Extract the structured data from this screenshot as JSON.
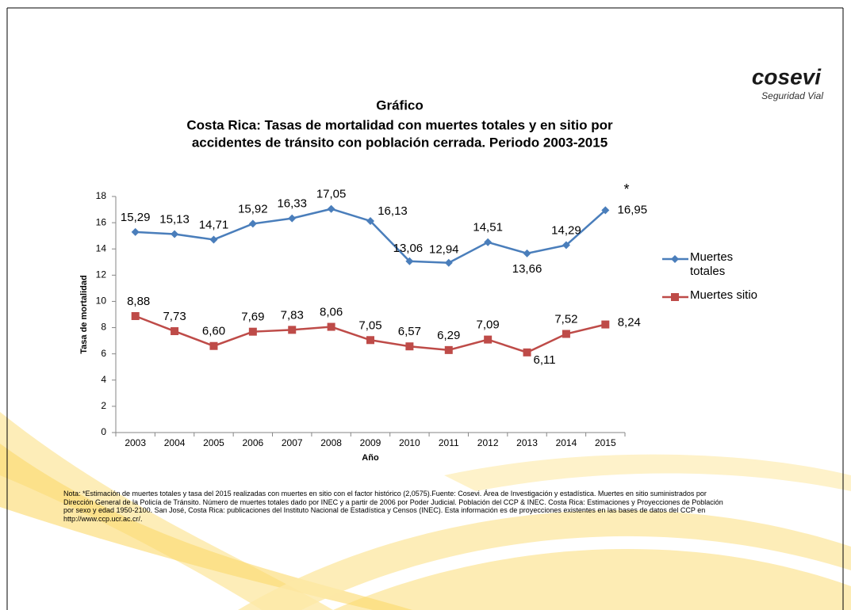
{
  "logo": {
    "name": "cosevi",
    "tagline": "Seguridad Vial"
  },
  "chart_data": {
    "type": "line",
    "title": "Gráfico",
    "subtitle": [
      "Costa Rica: Tasas de mortalidad con muertes totales  y  en sitio por",
      "accidentes de tránsito con población cerrada. Periodo 2003-2015"
    ],
    "x_label": "Año",
    "y_label": "Tasa de mortalidad",
    "annotation": "*",
    "categories": [
      "2003",
      "2004",
      "2005",
      "2006",
      "2007",
      "2008",
      "2009",
      "2010",
      "2011",
      "2012",
      "2013",
      "2014",
      "2015"
    ],
    "series": [
      {
        "name": "Muertes totales",
        "color": "#4a7ebb",
        "marker": "diamond",
        "values": [
          15.29,
          15.13,
          14.71,
          15.92,
          16.33,
          17.05,
          16.13,
          13.06,
          12.94,
          14.51,
          13.66,
          14.29,
          16.95
        ],
        "value_labels": [
          "15,29",
          "15,13",
          "14,71",
          "15,92",
          "16,33",
          "17,05",
          "16,13",
          "13,06",
          "12,94",
          "14,51",
          "13,66",
          "14,29",
          "16,95"
        ]
      },
      {
        "name": "Muertes sitio",
        "color": "#be4b48",
        "marker": "square",
        "values": [
          8.88,
          7.73,
          6.6,
          7.69,
          7.83,
          8.06,
          7.05,
          6.57,
          6.29,
          7.09,
          6.11,
          7.52,
          8.24
        ],
        "value_labels": [
          "8,88",
          "7,73",
          "6,60",
          "7,69",
          "7,83",
          "8,06",
          "7,05",
          "6,57",
          "6,29",
          "7,09",
          "6,11",
          "7,52",
          "8,24"
        ]
      }
    ],
    "ylim": [
      0,
      18
    ],
    "yticks": [
      0,
      2,
      4,
      6,
      8,
      10,
      12,
      14,
      16,
      18
    ],
    "grid": false,
    "legend": "right"
  },
  "note": "Nota: *Estimación de muertes totales y tasa del 2015 realizadas con muertes en sitio con el factor histórico (2,0575).Fuente: Cosevi. Área de Investigación y estadística. Muertes en sitio suministrados por Dirección General de la Policía de Tránsito.  Número de muertes totales  dado por INEC y a partir de 2006 por Poder Judicial. Población del CCP & INEC. Costa Rica: Estimaciones y Proyecciones de Población por sexo y edad  1950-2100. San José, Costa Rica: publicaciones del Instituto Nacional de Estadística y Censos (INEC).  Esta información es de proyecciones existentes en las bases de datos del CCP en http://www.ccp.ucr.ac.cr/."
}
